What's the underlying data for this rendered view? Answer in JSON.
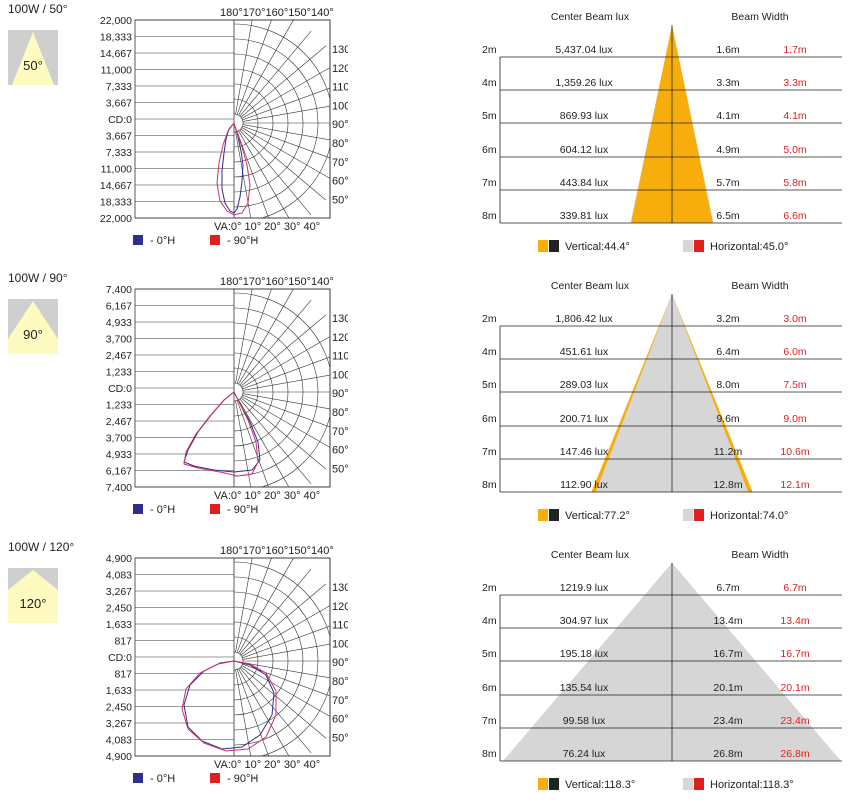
{
  "colors": {
    "vertical_fill": "#f7ae0c",
    "horizontal_fill": "#d6d6d6",
    "red": "#e02020",
    "blue": "#2e2e8c",
    "line": "#333333",
    "icon_bg": "#cfcfcf",
    "icon_cone": "#fffbc0"
  },
  "icons": [
    "light-cone-icon",
    "legend-swatch-icon"
  ],
  "sections": [
    {
      "title": "100W / 50°",
      "beam_label": "50°",
      "polar": {
        "cd_labels": [
          "22,000",
          "18,333",
          "14,667",
          "11,000",
          "7,333",
          "3,667",
          "CD:0",
          "3,667",
          "7,333",
          "11,000",
          "14,667",
          "18,333",
          "22,000"
        ],
        "top_angles": "180°170°160°150°140°",
        "right_angles": [
          "130°",
          "120°",
          "110°",
          "100°",
          "90°",
          "80°",
          "70°",
          "60°",
          "50°"
        ],
        "bottom_angles": "VA:0° 10° 20° 30° 40°",
        "legend": [
          "- 0°H",
          "- 90°H"
        ]
      },
      "table": {
        "header_lux": "Center Beam lux",
        "header_width": "Beam Width",
        "rows": [
          {
            "d": "2m",
            "lux": "5,437.04 lux",
            "v": "1.6m",
            "h": "1.7m"
          },
          {
            "d": "4m",
            "lux": "1,359.26 lux",
            "v": "3.3m",
            "h": "3.3m"
          },
          {
            "d": "5m",
            "lux": "869.93 lux",
            "v": "4.1m",
            "h": "4.1m"
          },
          {
            "d": "6m",
            "lux": "604.12 lux",
            "v": "4.9m",
            "h": "5.0m"
          },
          {
            "d": "7m",
            "lux": "443.84 lux",
            "v": "5.7m",
            "h": "5.8m"
          },
          {
            "d": "8m",
            "lux": "339.81 lux",
            "v": "6.5m",
            "h": "6.6m"
          }
        ],
        "legend_v": "Vertical:44.4°",
        "legend_h": "Horizontal:45.0°"
      }
    },
    {
      "title": "100W / 90°",
      "beam_label": "90°",
      "polar": {
        "cd_labels": [
          "7,400",
          "6,167",
          "4,933",
          "3,700",
          "2,467",
          "1,233",
          "CD:0",
          "1,233",
          "2,467",
          "3,700",
          "4,933",
          "6,167",
          "7,400"
        ],
        "top_angles": "180°170°160°150°140°",
        "right_angles": [
          "130°",
          "120°",
          "110°",
          "100°",
          "90°",
          "80°",
          "70°",
          "60°",
          "50°"
        ],
        "bottom_angles": "VA:0° 10° 20° 30° 40°",
        "legend": [
          "- 0°H",
          "- 90°H"
        ]
      },
      "table": {
        "header_lux": "Center Beam lux",
        "header_width": "Beam Width",
        "rows": [
          {
            "d": "2m",
            "lux": "1,806.42 lux",
            "v": "3.2m",
            "h": "3.0m"
          },
          {
            "d": "4m",
            "lux": "451.61 lux",
            "v": "6.4m",
            "h": "6.0m"
          },
          {
            "d": "5m",
            "lux": "289.03 lux",
            "v": "8.0m",
            "h": "7.5m"
          },
          {
            "d": "6m",
            "lux": "200.71 lux",
            "v": "9.6m",
            "h": "9.0m"
          },
          {
            "d": "7m",
            "lux": "147.46 lux",
            "v": "11.2m",
            "h": "10.6m"
          },
          {
            "d": "8m",
            "lux": "112.90 lux",
            "v": "12.8m",
            "h": "12.1m"
          }
        ],
        "legend_v": "Vertical:77.2°",
        "legend_h": "Horizontal:74.0°"
      }
    },
    {
      "title": "100W / 120°",
      "beam_label": "120°",
      "polar": {
        "cd_labels": [
          "4,900",
          "4,083",
          "3,267",
          "2,450",
          "1,633",
          "817",
          "CD:0",
          "817",
          "1,633",
          "2,450",
          "3,267",
          "4,083",
          "4,900"
        ],
        "top_angles": "180°170°160°150°140°",
        "right_angles": [
          "130°",
          "120°",
          "110°",
          "100°",
          "90°",
          "80°",
          "70°",
          "60°",
          "50°"
        ],
        "bottom_angles": "VA:0° 10° 20° 30° 40°",
        "legend": [
          "- 0°H",
          "- 90°H"
        ]
      },
      "table": {
        "header_lux": "Center Beam lux",
        "header_width": "Beam Width",
        "rows": [
          {
            "d": "2m",
            "lux": "1219.9 lux",
            "v": "6.7m",
            "h": "6.7m"
          },
          {
            "d": "4m",
            "lux": "304.97 lux",
            "v": "13.4m",
            "h": "13.4m"
          },
          {
            "d": "5m",
            "lux": "195.18 lux",
            "v": "16.7m",
            "h": "16.7m"
          },
          {
            "d": "6m",
            "lux": "135.54 lux",
            "v": "20.1m",
            "h": "20.1m"
          },
          {
            "d": "7m",
            "lux": "99.58 lux",
            "v": "23.4m",
            "h": "23.4m"
          },
          {
            "d": "8m",
            "lux": "76.24 lux",
            "v": "26.8m",
            "h": "26.8m"
          }
        ],
        "legend_v": "Vertical:118.3°",
        "legend_h": "Horizontal:118.3°"
      }
    }
  ],
  "chart_data": [
    {
      "type": "table",
      "title": "100W / 50°",
      "columns": [
        "distance",
        "center_beam_lux",
        "beam_width_vertical",
        "beam_width_horizontal"
      ],
      "rows": [
        [
          "2m",
          "5,437.04 lux",
          "1.6m",
          "1.7m"
        ],
        [
          "4m",
          "1,359.26 lux",
          "3.3m",
          "3.3m"
        ],
        [
          "5m",
          "869.93 lux",
          "4.1m",
          "4.1m"
        ],
        [
          "6m",
          "604.12 lux",
          "4.9m",
          "5.0m"
        ],
        [
          "7m",
          "443.84 lux",
          "5.7m",
          "5.8m"
        ],
        [
          "8m",
          "339.81 lux",
          "6.5m",
          "6.6m"
        ]
      ],
      "vertical_angle": 44.4,
      "horizontal_angle": 45.0
    },
    {
      "type": "table",
      "title": "100W / 90°",
      "columns": [
        "distance",
        "center_beam_lux",
        "beam_width_vertical",
        "beam_width_horizontal"
      ],
      "rows": [
        [
          "2m",
          "1,806.42 lux",
          "3.2m",
          "3.0m"
        ],
        [
          "4m",
          "451.61 lux",
          "6.4m",
          "6.0m"
        ],
        [
          "5m",
          "289.03 lux",
          "8.0m",
          "7.5m"
        ],
        [
          "6m",
          "200.71 lux",
          "9.6m",
          "9.0m"
        ],
        [
          "7m",
          "147.46 lux",
          "11.2m",
          "10.6m"
        ],
        [
          "8m",
          "112.90 lux",
          "12.8m",
          "12.1m"
        ]
      ],
      "vertical_angle": 77.2,
      "horizontal_angle": 74.0
    },
    {
      "type": "table",
      "title": "100W / 120°",
      "columns": [
        "distance",
        "center_beam_lux",
        "beam_width_vertical",
        "beam_width_horizontal"
      ],
      "rows": [
        [
          "2m",
          "1219.9 lux",
          "6.7m",
          "6.7m"
        ],
        [
          "4m",
          "304.97 lux",
          "13.4m",
          "13.4m"
        ],
        [
          "5m",
          "195.18 lux",
          "16.7m",
          "16.7m"
        ],
        [
          "6m",
          "135.54 lux",
          "20.1m",
          "20.1m"
        ],
        [
          "7m",
          "99.58 lux",
          "23.4m",
          "23.4m"
        ],
        [
          "8m",
          "76.24 lux",
          "26.8m",
          "26.8m"
        ]
      ],
      "vertical_angle": 118.3,
      "horizontal_angle": 118.3
    }
  ]
}
